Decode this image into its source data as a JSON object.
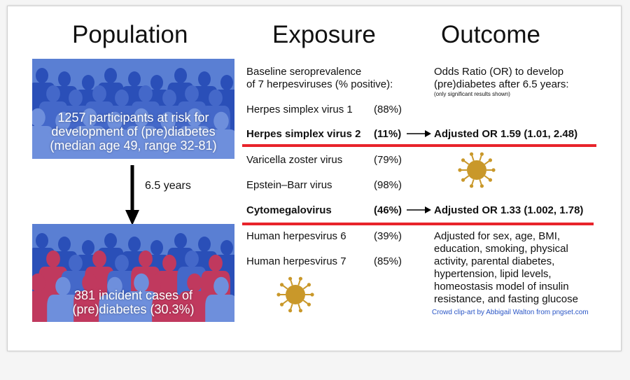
{
  "headings": {
    "population": "Population",
    "exposure": "Exposure",
    "outcome": "Outcome"
  },
  "population": {
    "baseline_line1": "1257 participants at risk for",
    "baseline_line2": "development of (pre)diabetes",
    "baseline_line3": "(median age 49, range 32-81)",
    "followup": "6.5 years",
    "incident_line1": "381 incident cases of",
    "incident_line2": "(pre)diabetes (30.3%)"
  },
  "exposure": {
    "header_line1": "Baseline seroprevalence",
    "header_line2": "of 7 herpesviruses (% positive):",
    "viruses": [
      {
        "name": "Herpes simplex virus 1",
        "pct": "(88%)"
      },
      {
        "name": "Herpes simplex virus 2",
        "pct": "(11%)"
      },
      {
        "name": "Varicella zoster virus",
        "pct": "(79%)"
      },
      {
        "name": "Epstein–Barr virus",
        "pct": "(98%)"
      },
      {
        "name": "Cytomegalovirus",
        "pct": "(46%)"
      },
      {
        "name": "Human herpesvirus 6",
        "pct": "(39%)"
      },
      {
        "name": "Human herpesvirus 7",
        "pct": "(85%)"
      }
    ]
  },
  "outcome": {
    "header_line1": "Odds Ratio (OR) to develop",
    "header_line2": "(pre)diabetes after 6.5 years:",
    "note": "(only significant results shown)",
    "result_hsv2": "Adjusted OR 1.59 (1.01, 2.48)",
    "result_cmv": "Adjusted OR 1.33 (1.002, 1.78)",
    "adjust_lines": [
      "Adjusted for sex, age, BMI,",
      "education, smoking, physical",
      "activity, parental diabetes,",
      "hypertension, lipid levels,",
      "homeostasis model of insulin",
      "resistance, and fasting glucose"
    ]
  },
  "credit": "Crowd clip-art by Abbigail Walton from pngset.com",
  "colors": {
    "crowd_blue": "#5a7fd3",
    "crowd_dark_blue": "#2a4fb8",
    "crowd_red": "#c0395e",
    "highlight_red": "#e8232b",
    "virus_gold": "#c9982a",
    "credit_blue": "#2a56c6"
  },
  "icons": [
    "down-arrow-icon",
    "right-arrow-icon",
    "virus-icon"
  ]
}
